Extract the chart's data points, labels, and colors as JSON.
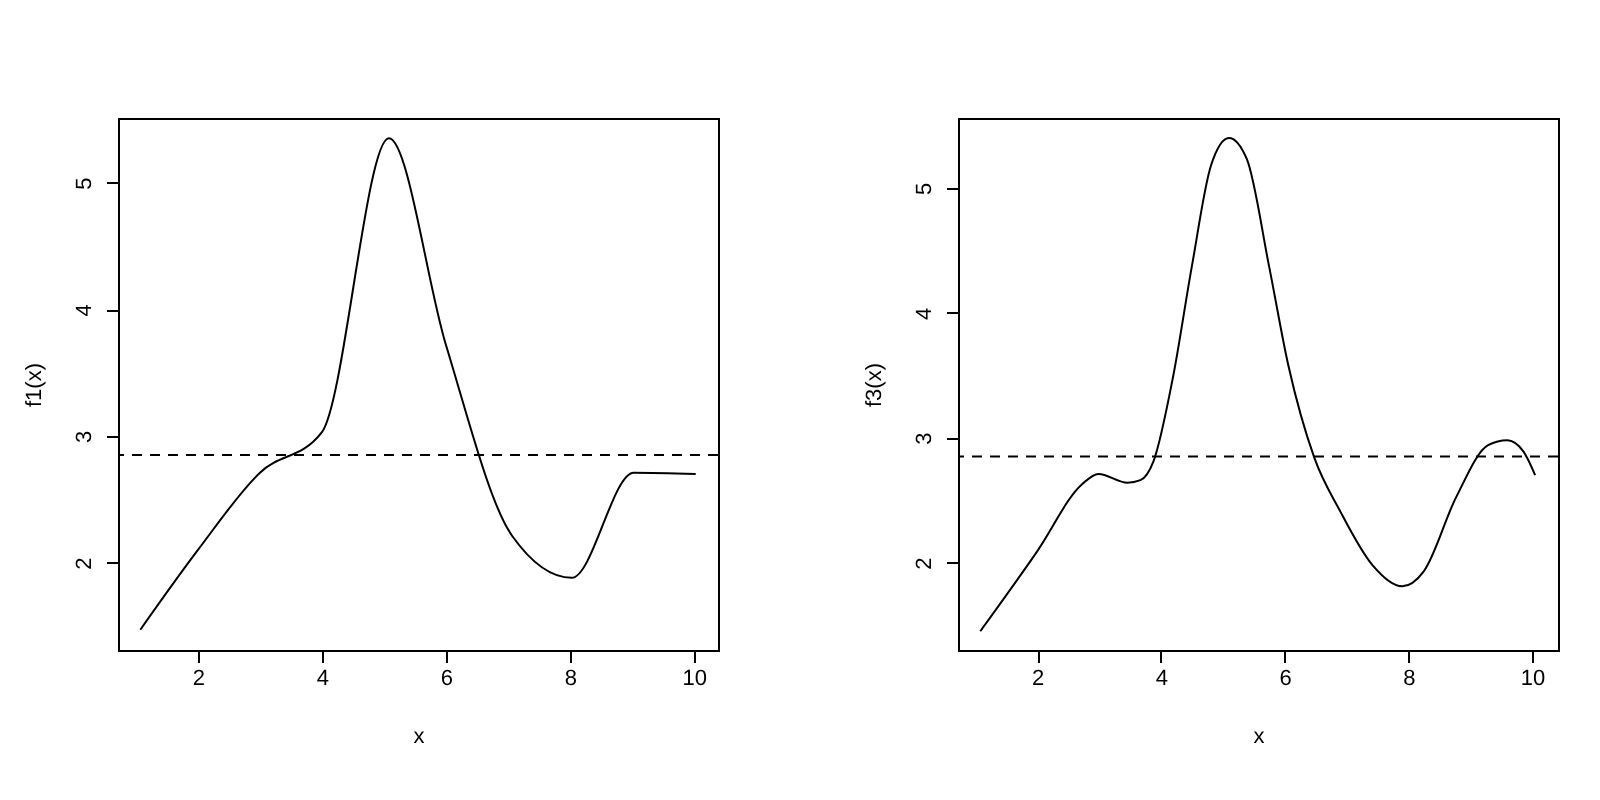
{
  "chart_data": [
    {
      "type": "line",
      "xlabel": "x",
      "ylabel": "f1(x)",
      "xlim": [
        0.71,
        10.39
      ],
      "ylim": [
        1.31,
        5.51
      ],
      "xticks": [
        2,
        4,
        6,
        8,
        10
      ],
      "yticks": [
        2,
        3,
        4,
        5
      ],
      "grid": false,
      "line_style": "solid",
      "series": [
        {
          "color": "#000000",
          "x": [
            1.07,
            2.0,
            3.0,
            4.0,
            5.08,
            6.0,
            7.07,
            8.03,
            9.03,
            10.03
          ],
          "values": [
            1.47,
            2.1,
            2.71,
            3.03,
            5.35,
            3.72,
            2.21,
            1.88,
            2.71,
            2.7
          ]
        }
      ],
      "ref_lines": [
        {
          "axis": "y",
          "value": 2.85,
          "line_style": "dashed",
          "color": "#000000"
        }
      ]
    },
    {
      "type": "line",
      "xlabel": "x",
      "ylabel": "f3(x)",
      "xlim": [
        0.72,
        10.42
      ],
      "ylim": [
        1.3,
        5.56
      ],
      "xticks": [
        2,
        4,
        6,
        8,
        10
      ],
      "yticks": [
        2,
        3,
        4,
        5
      ],
      "grid": false,
      "line_style": "solid",
      "series": [
        {
          "color": "#000000",
          "x": [
            1.08,
            2.0,
            2.73,
            2.99,
            3.46,
            3.67,
            3.88,
            4.19,
            4.5,
            4.81,
            5.1,
            5.39,
            5.75,
            6.06,
            6.48,
            6.9,
            7.42,
            7.9,
            8.25,
            8.77,
            9.29,
            9.6,
            9.86,
            10.05
          ],
          "values": [
            1.45,
            2.09,
            2.63,
            2.71,
            2.64,
            2.66,
            2.81,
            3.47,
            4.37,
            5.18,
            5.4,
            5.23,
            4.37,
            3.58,
            2.84,
            2.41,
            1.98,
            1.81,
            1.93,
            2.52,
            2.94,
            2.98,
            2.89,
            2.7
          ]
        }
      ],
      "ref_lines": [
        {
          "axis": "y",
          "value": 2.85,
          "line_style": "dashed",
          "color": "#000000"
        }
      ]
    }
  ]
}
